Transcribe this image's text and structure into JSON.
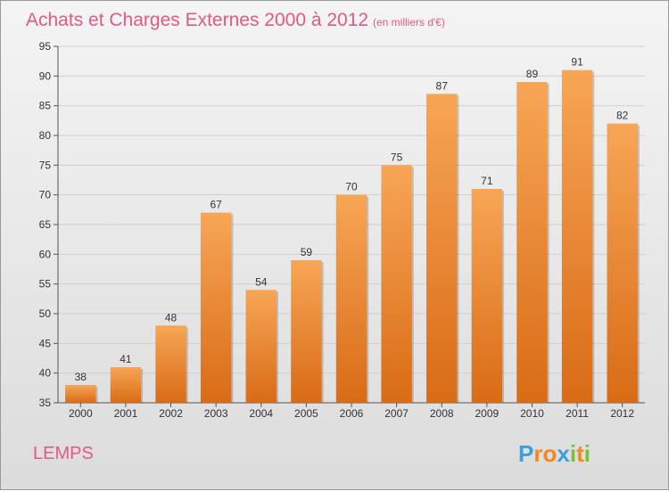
{
  "chart_data": {
    "type": "bar",
    "title": "Achats et Charges Externes 2000 à 2012",
    "unit": "(en milliers d'€)",
    "categories": [
      "2000",
      "2001",
      "2002",
      "2003",
      "2004",
      "2005",
      "2006",
      "2007",
      "2008",
      "2009",
      "2010",
      "2011",
      "2012"
    ],
    "values": [
      38,
      41,
      48,
      67,
      54,
      59,
      70,
      75,
      87,
      71,
      89,
      91,
      82
    ],
    "ylim": [
      35,
      95
    ],
    "yticks": [
      35,
      40,
      45,
      50,
      55,
      60,
      65,
      70,
      75,
      80,
      85,
      90,
      95
    ],
    "grid": true,
    "bar_color_top": "#f7a656",
    "bar_color_bottom": "#d96b16"
  },
  "footer": {
    "commune": "LEMPS",
    "logo_letters": [
      "P",
      "r",
      "o",
      "x",
      "i",
      "t",
      "i"
    ],
    "logo_colors": [
      "#3f9fd8",
      "#f08a1e",
      "#f08a1e",
      "#3f9fd8",
      "#7bbf3a",
      "#f08a1e",
      "#7bbf3a"
    ]
  }
}
